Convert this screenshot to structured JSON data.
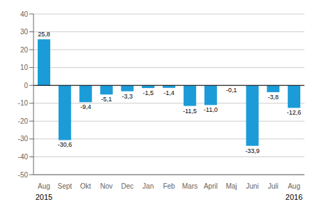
{
  "chart_data": {
    "type": "bar",
    "categories": [
      "Aug",
      "Sept",
      "Okt",
      "Nov",
      "Dec",
      "Jan",
      "Feb",
      "Mars",
      "April",
      "Maj",
      "Juni",
      "Juli",
      "Aug"
    ],
    "values": [
      25.8,
      -30.6,
      -9.4,
      -5.1,
      -3.3,
      -1.5,
      -1.4,
      -11.5,
      -11.0,
      -0.1,
      -33.9,
      -3.8,
      -12.6
    ],
    "value_labels": [
      "25,8",
      "-30,6",
      "-9,4",
      "-5,1",
      "-3,3",
      "-1,5",
      "-1,4",
      "-11,5",
      "-11,0",
      "-0,1",
      "-33,9",
      "-3,8",
      "-12,6"
    ],
    "data_labels": true,
    "color": "#1b9cd8",
    "ylim": [
      -50,
      40
    ],
    "yticks": [
      -50,
      -40,
      -30,
      -20,
      -10,
      0,
      10,
      20,
      30,
      40
    ],
    "grid": true,
    "annotations": [
      {
        "text": "2015",
        "x": 0
      },
      {
        "text": "2016",
        "x": 12
      }
    ]
  }
}
